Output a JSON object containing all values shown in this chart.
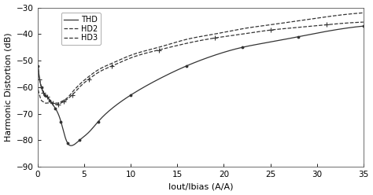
{
  "title": "",
  "xlabel": "Iout/Ibias (A/A)",
  "ylabel": "Harmonic Distortion (dB)",
  "xlim": [
    0,
    35
  ],
  "ylim": [
    -90,
    -30
  ],
  "xticks": [
    0,
    5,
    10,
    15,
    20,
    25,
    30,
    35
  ],
  "yticks": [
    -90,
    -80,
    -70,
    -60,
    -50,
    -40,
    -30
  ],
  "legend": [
    "THD",
    "HD2",
    "HD3"
  ],
  "line_color": "#333333",
  "figsize": [
    4.74,
    2.48
  ],
  "dpi": 100,
  "thd_x": [
    0.05,
    0.2,
    0.4,
    0.6,
    0.8,
    1.0,
    1.3,
    1.6,
    1.9,
    2.2,
    2.5,
    2.8,
    3.2,
    3.7,
    4.5,
    5.5,
    6.5,
    8.0,
    10.0,
    13.0,
    16.0,
    19.0,
    22.0,
    25.0,
    28.0,
    31.0,
    35.0
  ],
  "thd_y": [
    -52,
    -57,
    -60,
    -62,
    -63,
    -63.5,
    -65,
    -66.5,
    -68,
    -70,
    -73,
    -77,
    -81,
    -82,
    -80,
    -77,
    -73,
    -68,
    -63,
    -57,
    -52,
    -48,
    -45,
    -43,
    -41,
    -39,
    -37
  ],
  "hd2_x": [
    0.05,
    0.2,
    0.4,
    0.6,
    0.8,
    1.0,
    1.3,
    1.6,
    1.9,
    2.2,
    2.5,
    2.8,
    3.2,
    3.7,
    4.5,
    5.5,
    6.5,
    8.0,
    10.0,
    13.0,
    16.0,
    19.0,
    22.0,
    25.0,
    28.0,
    31.0,
    35.0
  ],
  "hd2_y": [
    -61,
    -63,
    -65,
    -65.5,
    -66,
    -66,
    -66,
    -66,
    -66,
    -66,
    -65.5,
    -65,
    -64,
    -62,
    -59,
    -56,
    -53.5,
    -51,
    -48,
    -45,
    -42,
    -40,
    -38,
    -36.5,
    -35,
    -33.5,
    -32
  ],
  "hd3_x": [
    0.05,
    0.2,
    0.4,
    0.6,
    0.8,
    1.0,
    1.3,
    1.6,
    1.9,
    2.2,
    2.5,
    2.8,
    3.2,
    3.7,
    4.5,
    5.5,
    6.5,
    8.0,
    10.0,
    13.0,
    16.0,
    19.0,
    22.0,
    25.0,
    28.0,
    31.0,
    35.0
  ],
  "hd3_y": [
    -53,
    -57,
    -60,
    -62,
    -63,
    -63.5,
    -65,
    -66,
    -66.5,
    -66.5,
    -66,
    -65.5,
    -64.5,
    -63,
    -60,
    -57,
    -54.5,
    -52,
    -49,
    -46,
    -43.5,
    -41.5,
    -40,
    -38.5,
    -37.5,
    -36.5,
    -35.5
  ]
}
